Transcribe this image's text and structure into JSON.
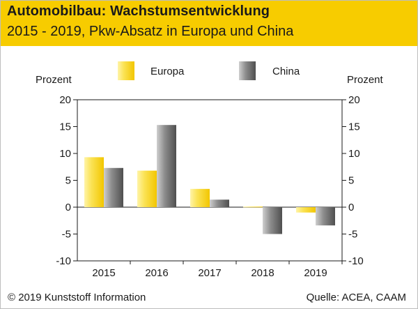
{
  "header": {
    "title": "Automobilbau: Wachstumsentwicklung",
    "subtitle": "2015 - 2019, Pkw-Absatz in Europa und China"
  },
  "footer": {
    "copyright": "© 2019 Kunststoff Information",
    "source": "Quelle: ACEA, CAAM"
  },
  "colors": {
    "header_bg": "#f7cc00",
    "europa": "#f5d31f",
    "china": "#7a7a7a"
  },
  "chart_data": {
    "type": "bar",
    "categories": [
      "2015",
      "2016",
      "2017",
      "2018",
      "2019"
    ],
    "series": [
      {
        "name": "Europa",
        "values": [
          9.3,
          6.8,
          3.4,
          0.1,
          -1.0
        ]
      },
      {
        "name": "China",
        "values": [
          7.3,
          15.3,
          1.4,
          -5.0,
          -3.4
        ]
      }
    ],
    "ylabel_left": "Prozent",
    "ylabel_right": "Prozent",
    "ylim": [
      -10,
      20
    ],
    "yticks": [
      20,
      15,
      10,
      5,
      0,
      -5,
      -10
    ],
    "legend_position": "top-center",
    "grid": false
  }
}
